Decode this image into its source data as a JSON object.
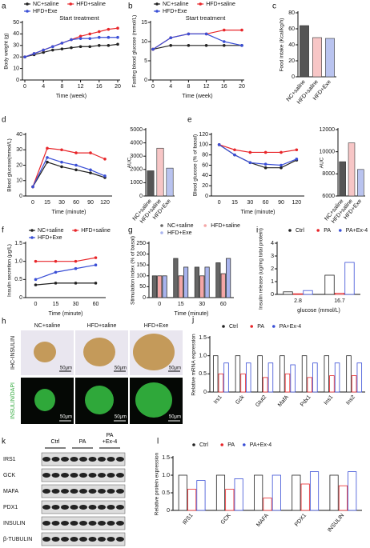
{
  "chart_data": [
    {
      "label": "a",
      "type": "line",
      "ylabel": "Body weight (g)",
      "xlabel": "Time (week)",
      "annotation": "Start treatment",
      "legend": "top",
      "x": [
        0,
        2,
        4,
        6,
        8,
        10,
        12,
        14,
        16,
        18,
        20
      ],
      "xlim": [
        0,
        20
      ],
      "xticks": [
        0,
        4,
        8,
        12,
        16,
        20
      ],
      "ylim": [
        0,
        50
      ],
      "yticks": [
        0,
        10,
        20,
        30,
        40,
        50
      ],
      "series": [
        {
          "name": "NC+saline",
          "color": "#222222",
          "values": [
            20,
            22,
            24,
            26,
            27,
            28,
            29,
            29,
            30,
            30,
            31
          ]
        },
        {
          "name": "HFD+saline",
          "color": "#e8262a",
          "values": [
            20,
            23,
            26,
            29,
            32,
            35,
            38,
            40,
            42,
            44,
            45
          ]
        },
        {
          "name": "HFD+Exe",
          "color": "#3a4fd6",
          "values": [
            20,
            23,
            26,
            29,
            32,
            35,
            36,
            36,
            37,
            37,
            37
          ]
        }
      ]
    },
    {
      "label": "b",
      "type": "line",
      "ylabel": "Fasting blood glucose (mmol/L)",
      "xlabel": "Time (week)",
      "annotation": "Start treatment",
      "legend": "top",
      "x": [
        0,
        4,
        8,
        12,
        16,
        20
      ],
      "xlim": [
        0,
        20
      ],
      "xticks": [
        0,
        4,
        8,
        12,
        16,
        20
      ],
      "ylim": [
        0,
        15
      ],
      "yticks": [
        0,
        5,
        10,
        15
      ],
      "series": [
        {
          "name": "NC+saline",
          "color": "#222222",
          "values": [
            8,
            9,
            9,
            9,
            9,
            9
          ]
        },
        {
          "name": "HFD+saline",
          "color": "#e8262a",
          "values": [
            8,
            11,
            12,
            12,
            13,
            13
          ]
        },
        {
          "name": "HFD+Exe",
          "color": "#3a4fd6",
          "values": [
            8,
            11,
            12,
            12,
            10,
            9
          ]
        }
      ]
    },
    {
      "label": "c",
      "type": "bar",
      "ylabel": "Food intake (Kcal/kg/h)",
      "categories": [
        "NC+saline",
        "HFD+saline",
        "HFD+Exe"
      ],
      "values": [
        64,
        49,
        48
      ],
      "colors": [
        "#555555",
        "#f7c6c6",
        "#b9c3ef"
      ],
      "ylim": [
        0,
        80
      ],
      "yticks": [
        0,
        20,
        40,
        60,
        80
      ]
    },
    {
      "label": "d",
      "type": "line",
      "ylabel": "Blood glucose(mmol/L)",
      "xlabel": "Time (minute)",
      "categories": [
        "0",
        "15",
        "30",
        "60",
        "90",
        "120"
      ],
      "ylim": [
        0,
        40
      ],
      "yticks": [
        0,
        10,
        20,
        30,
        40
      ],
      "series": [
        {
          "color": "#222222",
          "values": [
            6,
            22,
            19,
            17,
            15,
            12
          ]
        },
        {
          "color": "#e8262a",
          "values": [
            6,
            31,
            30,
            28,
            28,
            24
          ]
        },
        {
          "color": "#3a4fd6",
          "values": [
            6,
            25,
            22,
            20,
            17,
            13
          ]
        }
      ]
    },
    {
      "type": "bar",
      "ylabel": "AUC",
      "categories": [
        "NC+saline",
        "HFD+saline",
        "HFD+Exe"
      ],
      "values": [
        1900,
        3600,
        2100
      ],
      "colors": [
        "#555555",
        "#f7c6c6",
        "#b9c3ef"
      ],
      "ylim": [
        0,
        5000
      ],
      "yticks": [
        0,
        1000,
        2000,
        3000,
        4000,
        5000
      ]
    },
    {
      "label": "e",
      "type": "line",
      "ylabel": "Blood glucose (% of basal)",
      "xlabel": "Time (minute)",
      "categories": [
        "0",
        "15",
        "30",
        "60",
        "90",
        "120"
      ],
      "ylim": [
        0,
        120
      ],
      "yticks": [
        0,
        20,
        40,
        60,
        80,
        100,
        120
      ],
      "series": [
        {
          "color": "#222222",
          "values": [
            100,
            80,
            65,
            55,
            55,
            70
          ]
        },
        {
          "color": "#e8262a",
          "values": [
            100,
            90,
            85,
            85,
            85,
            90
          ]
        },
        {
          "color": "#3a4fd6",
          "values": [
            100,
            80,
            65,
            62,
            60,
            72
          ]
        }
      ]
    },
    {
      "type": "bar",
      "ylabel": "AUC",
      "categories": [
        "NC+saline",
        "HFD+saline",
        "HFD+Exe"
      ],
      "values": [
        9100,
        10800,
        8400
      ],
      "colors": [
        "#555555",
        "#f7c6c6",
        "#b9c3ef"
      ],
      "ylim": [
        6000,
        12000
      ],
      "yticks": [
        6000,
        8000,
        10000,
        12000
      ]
    },
    {
      "label": "f",
      "type": "line",
      "ylabel": "Insulin secretion (μg/L)",
      "xlabel": "Time (minute)",
      "legend": "top",
      "categories": [
        "0",
        "15",
        "30",
        "60"
      ],
      "ylim": [
        0,
        1.5
      ],
      "yticks": [
        0,
        0.5,
        {
          "value": 1,
          "label": "1.0"
        },
        1.5
      ],
      "series": [
        {
          "name": "NC+saline",
          "color": "#222222",
          "values": [
            0.35,
            0.4,
            0.4,
            0.4
          ]
        },
        {
          "name": "HFD+saline",
          "color": "#e8262a",
          "values": [
            1.0,
            1.0,
            1.0,
            1.1
          ]
        },
        {
          "name": "HFD+Exe",
          "color": "#3a4fd6",
          "values": [
            0.5,
            0.7,
            0.8,
            0.9
          ]
        }
      ]
    },
    {
      "label": "g",
      "type": "bar",
      "ylabel": "Stimulation index (% of basal)",
      "xlabel": "Time (minute)",
      "legend": "top",
      "categories": [
        "0",
        "15",
        "30",
        "60"
      ],
      "ylim": [
        0,
        250
      ],
      "yticks": [
        0,
        50,
        100,
        150,
        200,
        250
      ],
      "series": [
        {
          "name": "NC+saline",
          "color": "#666666",
          "values": [
            100,
            180,
            140,
            160
          ]
        },
        {
          "name": "HFD+saline",
          "color": "#f4a6a6",
          "values": [
            100,
            100,
            100,
            110
          ]
        },
        {
          "name": "HFD+Exe",
          "color": "#a9b4ee",
          "values": [
            100,
            140,
            140,
            180
          ]
        }
      ]
    },
    {
      "label": "i",
      "type": "bar",
      "bar_style": "outline",
      "ylabel": "Insulin release (ug/mg total protein)",
      "xlabel": "glucose (mmol/L)",
      "legend": "top",
      "categories": [
        "2.8",
        "16.7"
      ],
      "ylim": [
        0,
        4
      ],
      "yticks": [
        0,
        1,
        2,
        3,
        4
      ],
      "series": [
        {
          "name": "Ctrl",
          "color": "#222222",
          "values": [
            0.2,
            1.5
          ]
        },
        {
          "name": "PA",
          "color": "#e8262a",
          "values": [
            0.05,
            0.1
          ]
        },
        {
          "name": "PA+Ex-4",
          "color": "#3a4fd6",
          "values": [
            0.3,
            2.5
          ]
        }
      ]
    },
    {
      "label": "j",
      "type": "bar",
      "bar_style": "outline",
      "ylabel": "Relative mRNA expression",
      "legend": "top",
      "categories": [
        "Irs1",
        "Gck",
        "Glut2",
        "MafA",
        "Pdx1",
        "Ins1",
        "Ins2"
      ],
      "ylim": [
        0,
        1.5
      ],
      "yticks": [
        0,
        0.5,
        {
          "value": 1,
          "label": "1.0"
        },
        1.5
      ],
      "series": [
        {
          "name": "Ctrl",
          "color": "#222222",
          "values": [
            1,
            1,
            1,
            1,
            1,
            1,
            1
          ]
        },
        {
          "name": "PA",
          "color": "#e8262a",
          "values": [
            0.5,
            0.5,
            0.4,
            0.5,
            0.4,
            0.45,
            0.45
          ]
        },
        {
          "name": "PA+Ex-4",
          "color": "#3a4fd6",
          "values": [
            0.8,
            0.8,
            0.8,
            0.75,
            0.8,
            0.8,
            0.8
          ]
        }
      ]
    },
    {
      "label": "l",
      "type": "bar",
      "bar_style": "outline",
      "ylabel": "Relative protein expression",
      "legend": "top",
      "categories": [
        "IRS1",
        "GCK",
        "MAFA",
        "PDX1",
        "INSULIN"
      ],
      "ylim": [
        0,
        1.5
      ],
      "yticks": [
        0,
        0.5,
        {
          "value": 1,
          "label": "1.0"
        },
        1.5
      ],
      "series": [
        {
          "name": "Ctrl",
          "color": "#222222",
          "values": [
            1,
            1,
            1,
            1,
            1
          ]
        },
        {
          "name": "PA",
          "color": "#e8262a",
          "values": [
            0.6,
            0.6,
            0.35,
            0.75,
            0.7
          ]
        },
        {
          "name": "PA+Ex-4",
          "color": "#3a4fd6",
          "values": [
            0.85,
            0.9,
            1.0,
            1.1,
            1.1
          ]
        }
      ]
    }
  ],
  "image_panels": {
    "h": {
      "label": "h",
      "columns": [
        "NC+saline",
        "HFD+saline",
        "HFD+Exe"
      ],
      "rows": [
        "IHC-INSULIN",
        "INSULIN/DAPI"
      ],
      "scale_bar": "50μm"
    },
    "k": {
      "label": "k",
      "lanes": [
        "Ctrl",
        "PA",
        "PA\n+Ex-4"
      ],
      "bands": [
        "IRS1",
        "GCK",
        "MAFA",
        "PDX1",
        "INSULIN",
        "β-TUBULIN"
      ]
    }
  }
}
